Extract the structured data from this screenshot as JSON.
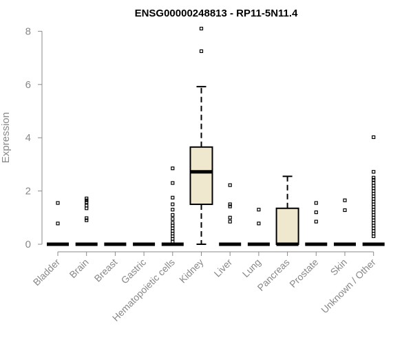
{
  "chart_data": {
    "type": "box",
    "title": "ENSG00000248813 - RP11-5N11.4",
    "ylabel": "Expression",
    "xlabel": "",
    "ylim": [
      0,
      8.2
    ],
    "yticks": [
      0,
      2,
      4,
      6,
      8
    ],
    "box_fill": "#EFE8CE",
    "categories": [
      "Bladder",
      "Brain",
      "Breast",
      "Gastric",
      "Hematopoietic cells",
      "Kidney",
      "Liver",
      "Lung",
      "Pancreas",
      "Prostate",
      "Skin",
      "Unknown / Other"
    ],
    "boxes": [
      {
        "category": "Bladder",
        "q1": 0,
        "median": 0,
        "q3": 0,
        "whisker_low": 0,
        "whisker_high": 0,
        "outliers": [
          1.55,
          0.78
        ]
      },
      {
        "category": "Brain",
        "q1": 0,
        "median": 0,
        "q3": 0,
        "whisker_low": 0,
        "whisker_high": 0,
        "outliers": [
          1.72,
          1.65,
          1.58,
          1.45,
          1.35,
          0.98,
          0.9
        ]
      },
      {
        "category": "Breast",
        "q1": 0,
        "median": 0,
        "q3": 0,
        "whisker_low": 0,
        "whisker_high": 0,
        "outliers": []
      },
      {
        "category": "Gastric",
        "q1": 0,
        "median": 0,
        "q3": 0,
        "whisker_low": 0,
        "whisker_high": 0,
        "outliers": []
      },
      {
        "category": "Hematopoietic cells",
        "q1": 0,
        "median": 0,
        "q3": 0,
        "whisker_low": 0,
        "whisker_high": 0,
        "outliers": [
          2.85,
          2.3,
          1.75,
          1.5,
          1.3,
          1.1,
          0.95,
          0.8,
          0.7,
          0.6,
          0.5,
          0.4,
          0.3,
          0.2,
          0.1
        ]
      },
      {
        "category": "Kidney",
        "q1": 1.5,
        "median": 2.72,
        "q3": 3.65,
        "whisker_low": 0,
        "whisker_high": 5.92,
        "outliers": [
          8.1,
          7.25
        ]
      },
      {
        "category": "Liver",
        "q1": 0,
        "median": 0,
        "q3": 0,
        "whisker_low": 0,
        "whisker_high": 0,
        "outliers": [
          2.22,
          1.5,
          1.42,
          1.0,
          0.85
        ]
      },
      {
        "category": "Lung",
        "q1": 0,
        "median": 0,
        "q3": 0,
        "whisker_low": 0,
        "whisker_high": 0,
        "outliers": [
          1.3,
          0.78
        ]
      },
      {
        "category": "Pancreas",
        "q1": 0,
        "median": 0,
        "q3": 1.35,
        "whisker_low": 0,
        "whisker_high": 2.55,
        "outliers": []
      },
      {
        "category": "Prostate",
        "q1": 0,
        "median": 0,
        "q3": 0,
        "whisker_low": 0,
        "whisker_high": 0,
        "outliers": [
          1.55,
          1.2,
          0.85
        ]
      },
      {
        "category": "Skin",
        "q1": 0,
        "median": 0,
        "q3": 0,
        "whisker_low": 0,
        "whisker_high": 0,
        "outliers": [
          1.65,
          1.28
        ]
      },
      {
        "category": "Unknown / Other",
        "q1": 0,
        "median": 0,
        "q3": 0,
        "whisker_low": 0,
        "whisker_high": 0,
        "outliers": [
          4.02,
          2.72,
          2.5,
          2.42,
          2.3,
          2.2,
          2.1,
          2.0,
          1.9,
          1.8,
          1.7,
          1.6,
          1.5,
          1.4,
          1.3,
          1.2,
          1.1,
          1.0,
          0.9,
          0.8,
          0.7,
          0.6,
          0.5,
          0.4,
          0.3
        ]
      }
    ]
  }
}
